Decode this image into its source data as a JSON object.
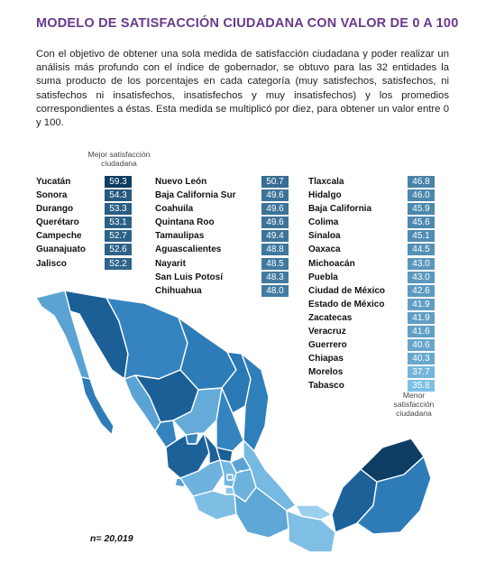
{
  "header": {
    "title": "MODELO DE SATISFACCIÓN CIUDADANA CON VALOR DE 0 A 100",
    "intro": "Con el objetivo de obtener una sola medida de satisfacción ciudadana y poder realizar un análisis más profundo con el índice de gobernador, se obtuvo para las 32 entidades la suma producto de los porcentajes en cada categoría (muy satisfechos, satisfechos, ni satisfechos ni insatisfechos, insatisfechos y muy insatisfechos) y los promedios correspondientes a éstas. Esta medida se multiplicó por diez, para obtener un valor entre 0 y 100."
  },
  "captions": {
    "best": "Mejor satisfacción ciudadana",
    "worst": "Menor satisfacción ciudadana"
  },
  "sample": "n= 20,019",
  "colors": {
    "title": "#6a3a8a",
    "scale_high": "#0d3d62",
    "scale_low": "#7ec0e6"
  },
  "chart_data": {
    "type": "table",
    "title": "MODELO DE SATISFACCIÓN CIUDADANA CON VALOR DE 0 A 100",
    "columns": [
      [
        {
          "state": "Yucatán",
          "value": 59.3
        },
        {
          "state": "Sonora",
          "value": 54.3
        },
        {
          "state": "Durango",
          "value": 53.3
        },
        {
          "state": "Querétaro",
          "value": 53.1
        },
        {
          "state": "Campeche",
          "value": 52.7
        },
        {
          "state": "Guanajuato",
          "value": 52.6
        },
        {
          "state": "Jalisco",
          "value": 52.2
        }
      ],
      [
        {
          "state": "Nuevo León",
          "value": 50.7
        },
        {
          "state": "Baja California Sur",
          "value": 49.6
        },
        {
          "state": "Coahuila",
          "value": 49.6
        },
        {
          "state": "Quintana Roo",
          "value": 49.6
        },
        {
          "state": "Tamaulipas",
          "value": 49.4
        },
        {
          "state": "Aguascalientes",
          "value": 48.8
        },
        {
          "state": "Nayarit",
          "value": 48.5
        },
        {
          "state": "San Luis Potosí",
          "value": 48.3
        },
        {
          "state": "Chihuahua",
          "value": 48.0
        }
      ],
      [
        {
          "state": "Tlaxcala",
          "value": 46.8
        },
        {
          "state": "Hidalgo",
          "value": 46.0
        },
        {
          "state": "Baja California",
          "value": 45.9
        },
        {
          "state": "Colima",
          "value": 45.6
        },
        {
          "state": "Sinaloa",
          "value": 45.1
        },
        {
          "state": "Oaxaca",
          "value": 44.5
        },
        {
          "state": "Michoacán",
          "value": 43.0
        },
        {
          "state": "Puebla",
          "value": 43.0
        },
        {
          "state": "Ciudad de México",
          "value": 42.6
        },
        {
          "state": "Estado de México",
          "value": 41.9
        },
        {
          "state": "Zacatecas",
          "value": 41.9
        },
        {
          "state": "Veracruz",
          "value": 41.6
        },
        {
          "state": "Guerrero",
          "value": 40.6
        },
        {
          "state": "Chiapas",
          "value": 40.3
        },
        {
          "state": "Morelos",
          "value": 37.7
        },
        {
          "state": "Tabasco",
          "value": 35.8
        }
      ]
    ]
  }
}
